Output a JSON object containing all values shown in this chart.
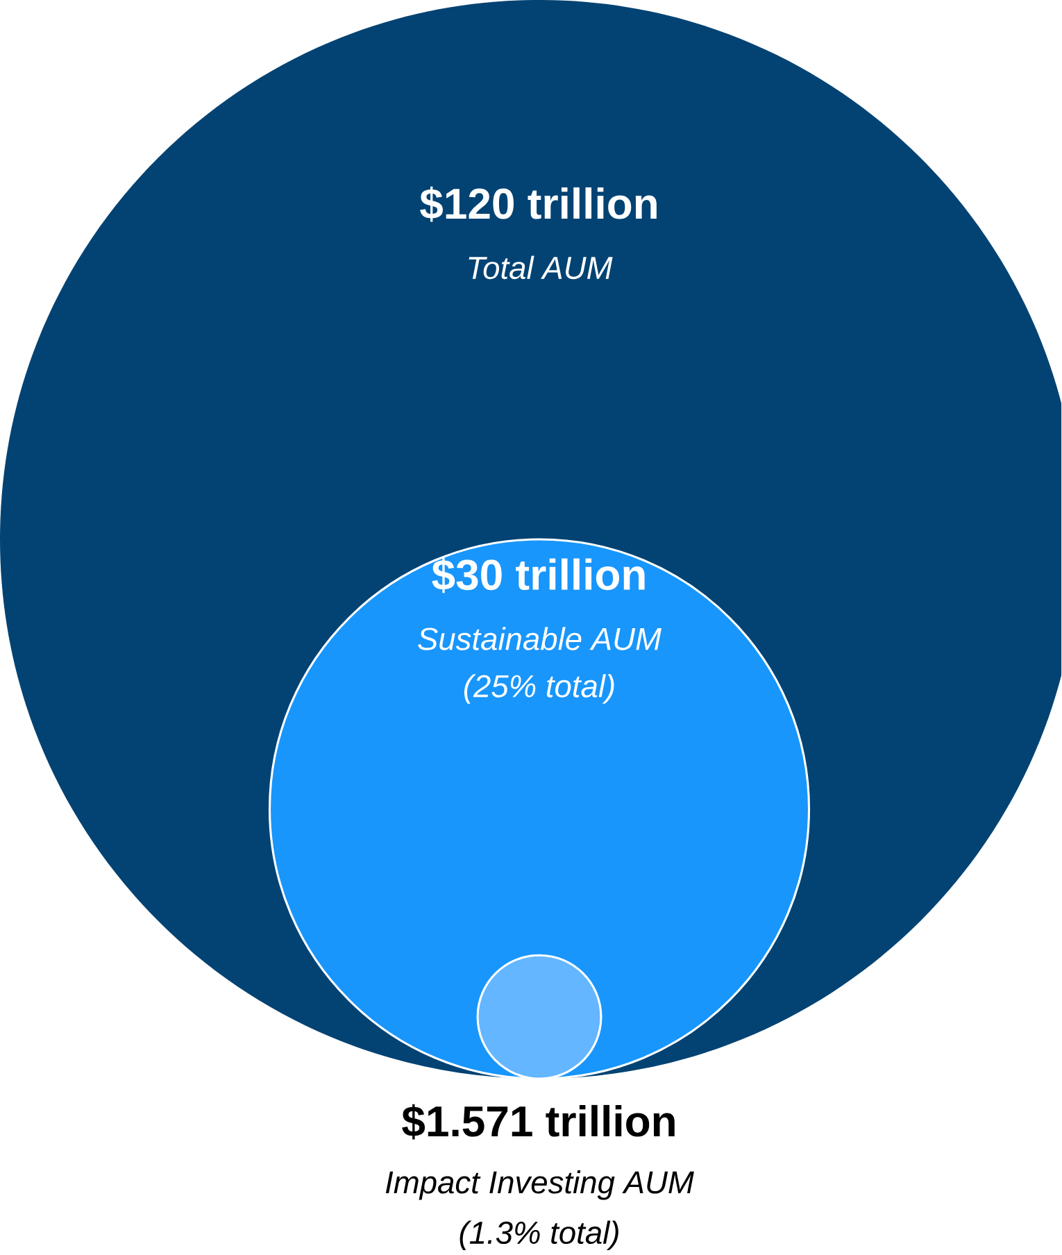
{
  "chart_data": {
    "type": "other",
    "categories": [
      "Total AUM",
      "Sustainable AUM",
      "Impact Investing AUM"
    ],
    "values": [
      120,
      30,
      1.571
    ],
    "value_labels": [
      "$120 trillion",
      "$30 trillion",
      "$1.571 trillion"
    ],
    "colors": [
      "#034373",
      "#1896fc",
      "#63b6ff"
    ],
    "annotations": [
      "(25% total)",
      "(1.3% total)"
    ]
  }
}
